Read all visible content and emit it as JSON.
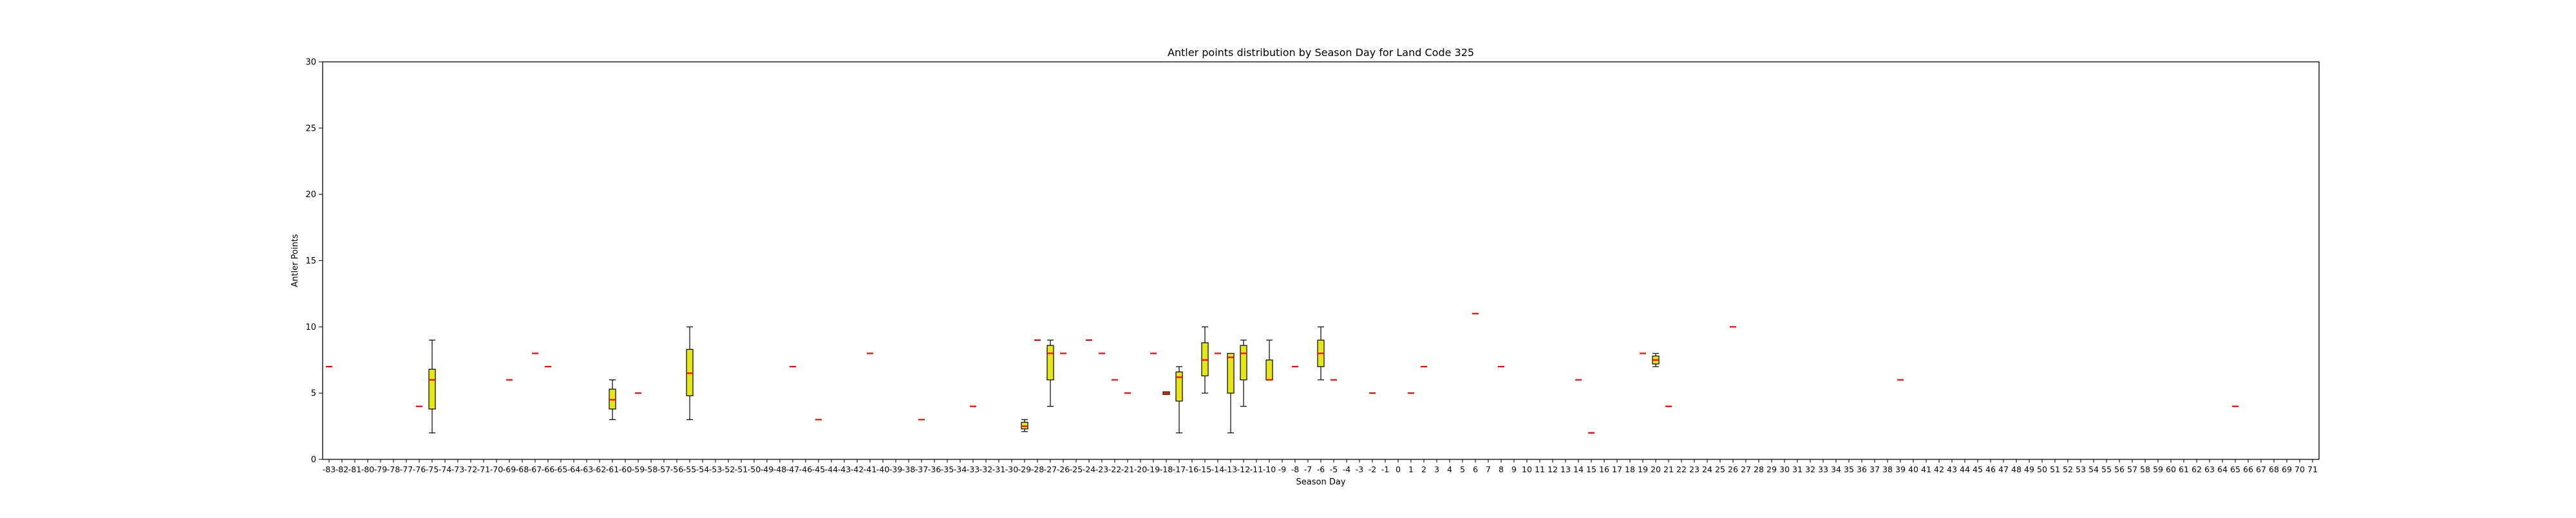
{
  "chart_data": {
    "type": "box",
    "title": "Antler points distribution by Season Day for Land Code 325",
    "xlabel": "Season Day",
    "ylabel": "Antler Points",
    "ylim": [
      0,
      30
    ],
    "yticks": [
      0,
      5,
      10,
      15,
      20,
      25,
      30
    ],
    "categories": [
      -83,
      -82,
      -81,
      -80,
      -79,
      -78,
      -77,
      -76,
      -75,
      -74,
      -73,
      -72,
      -71,
      -70,
      -69,
      -68,
      -67,
      -66,
      -65,
      -64,
      -63,
      -62,
      -61,
      -60,
      -59,
      -58,
      -57,
      -56,
      -55,
      -54,
      -53,
      -52,
      -51,
      -50,
      -49,
      -48,
      -47,
      -46,
      -45,
      -44,
      -43,
      -42,
      -41,
      -40,
      -39,
      -38,
      -37,
      -36,
      -35,
      -34,
      -33,
      -32,
      -31,
      -30,
      -29,
      -28,
      -27,
      -26,
      -25,
      -24,
      -23,
      -22,
      -21,
      -20,
      -19,
      -18,
      -17,
      -16,
      -15,
      -14,
      -13,
      -12,
      -11,
      -10,
      -9,
      -8,
      -7,
      -6,
      -5,
      -4,
      -3,
      -2,
      -1,
      0,
      1,
      2,
      3,
      4,
      5,
      6,
      7,
      8,
      9,
      10,
      11,
      12,
      13,
      14,
      15,
      16,
      17,
      18,
      19,
      20,
      21,
      22,
      23,
      24,
      25,
      26,
      27,
      28,
      29,
      30,
      31,
      32,
      33,
      34,
      35,
      36,
      37,
      38,
      39,
      40,
      41,
      42,
      43,
      44,
      45,
      46,
      47,
      48,
      49,
      50,
      51,
      52,
      53,
      54,
      55,
      56,
      57,
      58,
      59,
      60,
      61,
      62,
      63,
      64,
      65,
      66,
      67,
      68,
      69,
      70,
      71
    ],
    "box_color": "#e6e619",
    "median_color": "#ff0000",
    "boxes": [
      {
        "x": -83,
        "min": 7,
        "q1": 7,
        "median": 7,
        "q3": 7,
        "max": 7
      },
      {
        "x": -76,
        "min": 4,
        "q1": 4,
        "median": 4,
        "q3": 4,
        "max": 4
      },
      {
        "x": -75,
        "min": 2,
        "q1": 3.8,
        "median": 6,
        "q3": 6.8,
        "max": 9
      },
      {
        "x": -69,
        "min": 6,
        "q1": 6,
        "median": 6,
        "q3": 6,
        "max": 6
      },
      {
        "x": -67,
        "min": 8,
        "q1": 8,
        "median": 8,
        "q3": 8,
        "max": 8
      },
      {
        "x": -66,
        "min": 7,
        "q1": 7,
        "median": 7,
        "q3": 7,
        "max": 7
      },
      {
        "x": -61,
        "min": 3,
        "q1": 3.8,
        "median": 4.5,
        "q3": 5.3,
        "max": 6
      },
      {
        "x": -59,
        "min": 5,
        "q1": 5,
        "median": 5,
        "q3": 5,
        "max": 5
      },
      {
        "x": -55,
        "min": 3,
        "q1": 4.8,
        "median": 6.5,
        "q3": 8.3,
        "max": 10
      },
      {
        "x": -47,
        "min": 7,
        "q1": 7,
        "median": 7,
        "q3": 7,
        "max": 7
      },
      {
        "x": -45,
        "min": 3,
        "q1": 3,
        "median": 3,
        "q3": 3,
        "max": 3
      },
      {
        "x": -41,
        "min": 8,
        "q1": 8,
        "median": 8,
        "q3": 8,
        "max": 8
      },
      {
        "x": -37,
        "min": 3,
        "q1": 3,
        "median": 3,
        "q3": 3,
        "max": 3
      },
      {
        "x": -33,
        "min": 4,
        "q1": 4,
        "median": 4,
        "q3": 4,
        "max": 4
      },
      {
        "x": -29,
        "min": 2.1,
        "q1": 2.3,
        "median": 2.5,
        "q3": 2.8,
        "max": 3
      },
      {
        "x": -28,
        "min": 9,
        "q1": 9,
        "median": 9,
        "q3": 9,
        "max": 9
      },
      {
        "x": -27,
        "min": 4,
        "q1": 6,
        "median": 8,
        "q3": 8.6,
        "max": 9
      },
      {
        "x": -26,
        "min": 8,
        "q1": 8,
        "median": 8,
        "q3": 8,
        "max": 8
      },
      {
        "x": -24,
        "min": 9,
        "q1": 9,
        "median": 9,
        "q3": 9,
        "max": 9
      },
      {
        "x": -23,
        "min": 8,
        "q1": 8,
        "median": 8,
        "q3": 8,
        "max": 8
      },
      {
        "x": -22,
        "min": 6,
        "q1": 6,
        "median": 6,
        "q3": 6,
        "max": 6
      },
      {
        "x": -21,
        "min": 5,
        "q1": 5,
        "median": 5,
        "q3": 5,
        "max": 5
      },
      {
        "x": -19,
        "min": 8,
        "q1": 8,
        "median": 8,
        "q3": 8,
        "max": 8
      },
      {
        "x": -18,
        "min": 4.9,
        "q1": 4.9,
        "median": 5,
        "q3": 5.1,
        "max": 5.1
      },
      {
        "x": -17,
        "min": 2,
        "q1": 4.4,
        "median": 6.2,
        "q3": 6.6,
        "max": 7
      },
      {
        "x": -15,
        "min": 5,
        "q1": 6.3,
        "median": 7.5,
        "q3": 8.8,
        "max": 10
      },
      {
        "x": -14,
        "min": 8,
        "q1": 8,
        "median": 8,
        "q3": 8,
        "max": 8
      },
      {
        "x": -13,
        "min": 2,
        "q1": 5,
        "median": 7.7,
        "q3": 8,
        "max": 8
      },
      {
        "x": -12,
        "min": 4,
        "q1": 6,
        "median": 8,
        "q3": 8.6,
        "max": 9
      },
      {
        "x": -10,
        "min": 6,
        "q1": 6,
        "median": 6,
        "q3": 7.5,
        "max": 9
      },
      {
        "x": -8,
        "min": 7,
        "q1": 7,
        "median": 7,
        "q3": 7,
        "max": 7
      },
      {
        "x": -6,
        "min": 6,
        "q1": 7,
        "median": 8,
        "q3": 9,
        "max": 10
      },
      {
        "x": -5,
        "min": 6,
        "q1": 6,
        "median": 6,
        "q3": 6,
        "max": 6
      },
      {
        "x": -2,
        "min": 5,
        "q1": 5,
        "median": 5,
        "q3": 5,
        "max": 5
      },
      {
        "x": 1,
        "min": 5,
        "q1": 5,
        "median": 5,
        "q3": 5,
        "max": 5
      },
      {
        "x": 2,
        "min": 7,
        "q1": 7,
        "median": 7,
        "q3": 7,
        "max": 7
      },
      {
        "x": 6,
        "min": 11,
        "q1": 11,
        "median": 11,
        "q3": 11,
        "max": 11
      },
      {
        "x": 8,
        "min": 7,
        "q1": 7,
        "median": 7,
        "q3": 7,
        "max": 7
      },
      {
        "x": 14,
        "min": 6,
        "q1": 6,
        "median": 6,
        "q3": 6,
        "max": 6
      },
      {
        "x": 15,
        "min": 2,
        "q1": 2,
        "median": 2,
        "q3": 2,
        "max": 2
      },
      {
        "x": 19,
        "min": 8,
        "q1": 8,
        "median": 8,
        "q3": 8,
        "max": 8
      },
      {
        "x": 20,
        "min": 7,
        "q1": 7.2,
        "median": 7.5,
        "q3": 7.8,
        "max": 8
      },
      {
        "x": 21,
        "min": 4,
        "q1": 4,
        "median": 4,
        "q3": 4,
        "max": 4
      },
      {
        "x": 26,
        "min": 10,
        "q1": 10,
        "median": 10,
        "q3": 10,
        "max": 10
      },
      {
        "x": 39,
        "min": 6,
        "q1": 6,
        "median": 6,
        "q3": 6,
        "max": 6
      },
      {
        "x": 65,
        "min": 4,
        "q1": 4,
        "median": 4,
        "q3": 4,
        "max": 4
      }
    ]
  }
}
